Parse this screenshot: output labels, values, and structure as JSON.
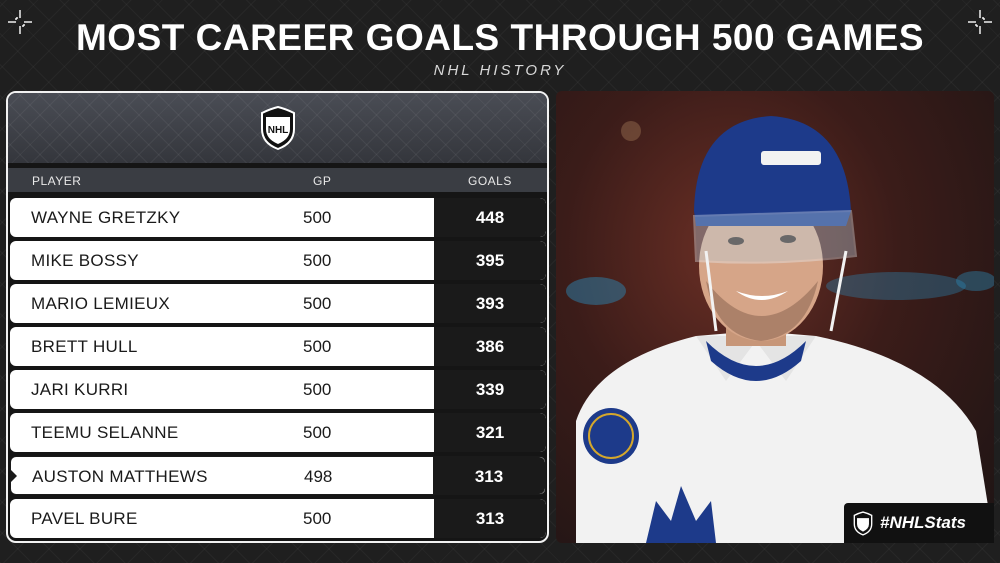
{
  "title": "MOST CAREER GOALS THROUGH 500 GAMES",
  "subtitle": "NHL HISTORY",
  "logo_text": "NHL",
  "columns": {
    "player": "PLAYER",
    "gp": "GP",
    "goals": "GOALS"
  },
  "rows": [
    {
      "player": "WAYNE GRETZKY",
      "gp": "500",
      "goals": "448"
    },
    {
      "player": "MIKE BOSSY",
      "gp": "500",
      "goals": "395"
    },
    {
      "player": "MARIO LEMIEUX",
      "gp": "500",
      "goals": "393"
    },
    {
      "player": "BRETT HULL",
      "gp": "500",
      "goals": "386"
    },
    {
      "player": "JARI KURRI",
      "gp": "500",
      "goals": "339"
    },
    {
      "player": "TEEMU SELANNE",
      "gp": "500",
      "goals": "321"
    },
    {
      "player": "AUSTON MATTHEWS",
      "gp": "498",
      "goals": "313"
    },
    {
      "player": "PAVEL BURE",
      "gp": "500",
      "goals": "313"
    }
  ],
  "highlight_index": 6,
  "hashtag": "#NHLStats",
  "colors": {
    "background": "#1f1f1f",
    "row_bg": "#ffffff",
    "goals_bg": "#1a1a1a",
    "jersey_blue": "#1d3a8a"
  }
}
